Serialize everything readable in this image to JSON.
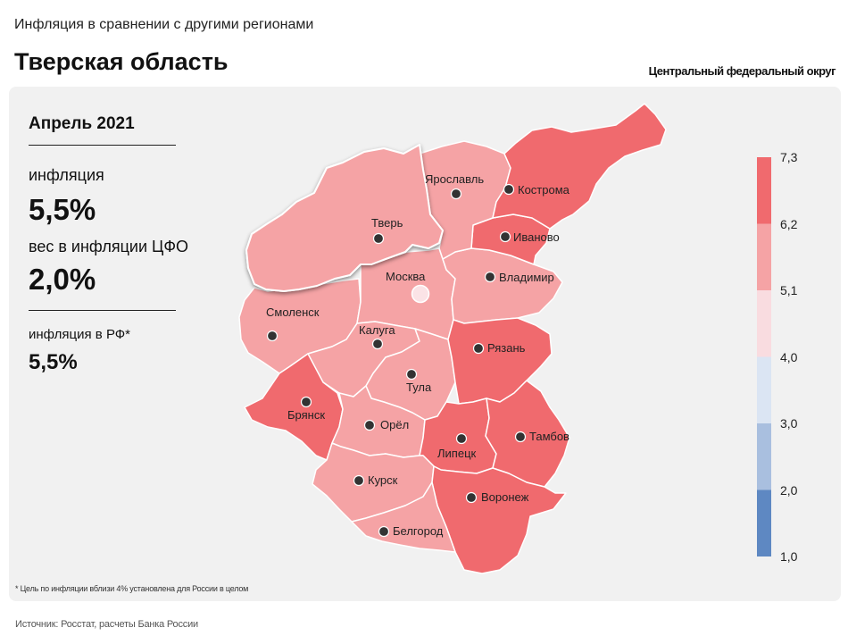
{
  "header": {
    "subtitle": "Инфляция в сравнении с другими регионами",
    "title": "Тверская область",
    "district": "Центральный федеральный округ"
  },
  "info": {
    "period": "Апрель 2021",
    "inflation_label": "инфляция",
    "inflation_value": "5,5%",
    "weight_label": "вес в инфляции ЦФО",
    "weight_value": "2,0%",
    "rf_label": "инфляция в РФ*",
    "rf_value": "5,5%"
  },
  "footnote": "* Цель по инфляции вблизи 4% установлена для России в целом",
  "source": "Источник: Росстат, расчеты Банка России",
  "legend": {
    "ticks": [
      "7,3",
      "6,2",
      "5,1",
      "4,0",
      "3,0",
      "2,0",
      "1,0"
    ],
    "colors": [
      "#f06a6e",
      "#f5a3a5",
      "#f9dce0",
      "#dbe5f3",
      "#a9bfdf",
      "#5e88c2"
    ]
  },
  "regions": [
    {
      "name": "Тверь",
      "value": "5,5%",
      "color": "#f5a3a5",
      "highlight": true
    },
    {
      "name": "Ярославль",
      "color": "#f5a3a5"
    },
    {
      "name": "Кострома",
      "color": "#f06a6e"
    },
    {
      "name": "Иваново",
      "color": "#f06a6e"
    },
    {
      "name": "Владимир",
      "color": "#f5a3a5"
    },
    {
      "name": "Москва",
      "color": "#f5a3a5"
    },
    {
      "name": "Смоленск",
      "color": "#f5a3a5"
    },
    {
      "name": "Калуга",
      "color": "#f5a3a5"
    },
    {
      "name": "Тула",
      "color": "#f5a3a5"
    },
    {
      "name": "Рязань",
      "color": "#f06a6e"
    },
    {
      "name": "Брянск",
      "color": "#f06a6e"
    },
    {
      "name": "Орёл",
      "color": "#f5a3a5"
    },
    {
      "name": "Липецк",
      "color": "#f06a6e"
    },
    {
      "name": "Тамбов",
      "color": "#f06a6e"
    },
    {
      "name": "Курск",
      "color": "#f5a3a5"
    },
    {
      "name": "Воронеж",
      "color": "#f06a6e"
    },
    {
      "name": "Белгород",
      "color": "#f5a3a5"
    }
  ]
}
